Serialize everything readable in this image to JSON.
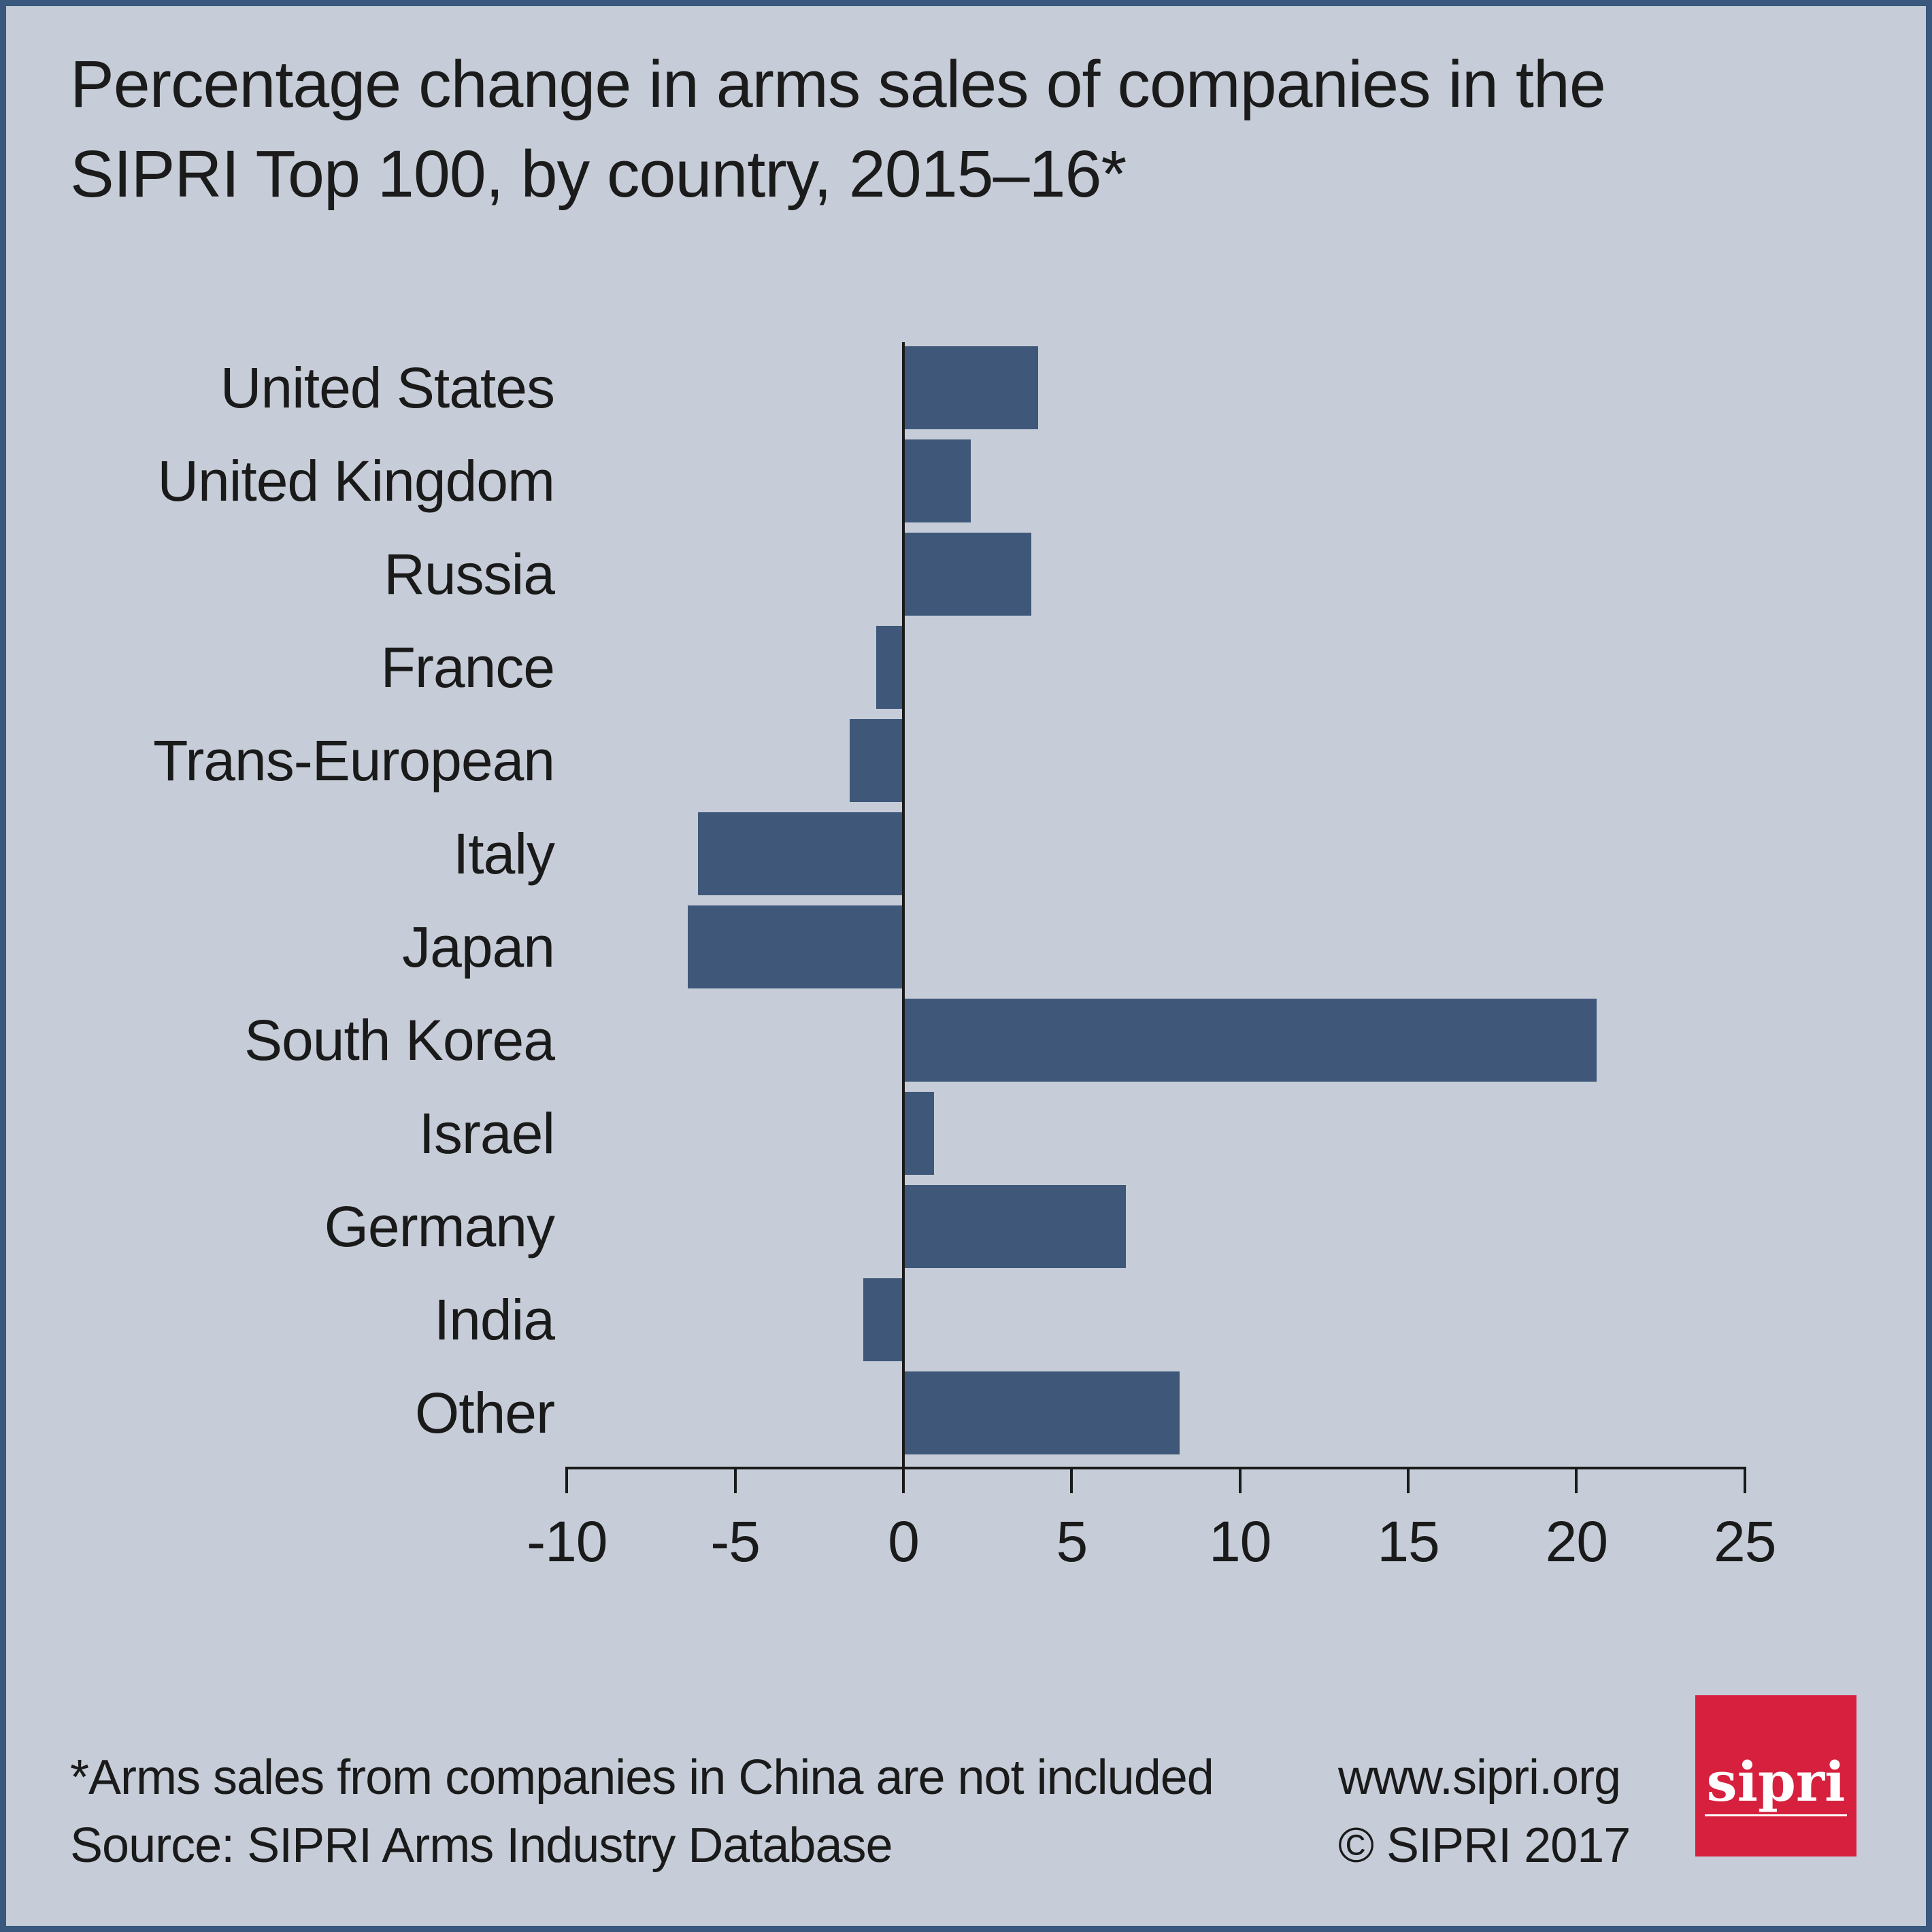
{
  "title": {
    "line1": "Percentage change in arms sales of companies in the",
    "line2": "SIPRI Top 100, by country, 2015–16*"
  },
  "chart_data": {
    "type": "bar",
    "orientation": "horizontal",
    "title": "Percentage change in arms sales of companies in the SIPRI Top 100, by country, 2015–16*",
    "categories": [
      "United States",
      "United Kingdom",
      "Russia",
      "France",
      "Trans-European",
      "Italy",
      "Japan",
      "South Korea",
      "Israel",
      "Germany",
      "India",
      "Other"
    ],
    "values": [
      4.0,
      2.0,
      3.8,
      -0.8,
      -1.6,
      -6.1,
      -6.4,
      20.6,
      0.9,
      6.6,
      -1.2,
      8.2
    ],
    "unit": "percent",
    "xlabel": "",
    "ylabel": "",
    "xlim": [
      -10,
      25
    ],
    "xticks": [
      -10,
      -5,
      0,
      5,
      10,
      15,
      20,
      25
    ],
    "xtick_labels": [
      "-10",
      "-5",
      "0",
      "5",
      "10",
      "15",
      "20",
      "25"
    ],
    "grid": false,
    "legend": false,
    "bar_color": "#3f587a",
    "axis_color": "#1a1a1a"
  },
  "footer": {
    "note": "*Arms sales from companies in China are not included",
    "source": "Source: SIPRI Arms Industry Database",
    "website": "www.sipri.org",
    "copyright": "© SIPRI 2017"
  },
  "logo": {
    "text": "sipri",
    "background": "#d6203e",
    "text_color": "#ffffff"
  },
  "colors": {
    "background": "#c6cdd8",
    "border": "#3a577d",
    "text": "#1b1b1b"
  }
}
